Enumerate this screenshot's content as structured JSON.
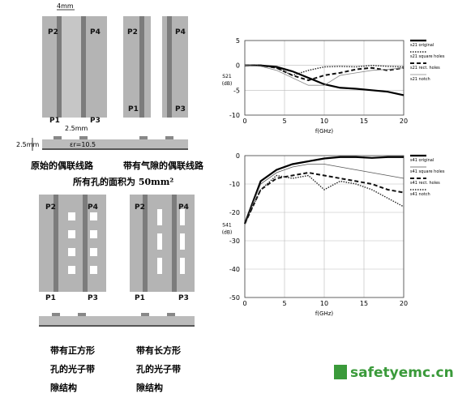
{
  "figure": {
    "width_label": "4mm",
    "gap_label": "2.5mm",
    "height_label": "2.5mm",
    "eps_label": "εr=10.5",
    "ports": [
      "P2",
      "P4",
      "P1",
      "P3"
    ],
    "caption_original": "原始的偶联线路",
    "caption_gap": "带有气隙的偶联线路",
    "caption_area": "所有孔的面积为 50mm²",
    "caption_square": [
      "带有正方形",
      "孔的光子带",
      "隙结构"
    ],
    "caption_rect": [
      "带有长方形",
      "孔的光子带",
      "隙结构"
    ],
    "watermark": "safetyemc.cn"
  },
  "chart_data": [
    {
      "type": "line",
      "ylabel": [
        "S21",
        "(dB)"
      ],
      "xlabel": "f(GHz)",
      "x": [
        0,
        2,
        4,
        6,
        8,
        10,
        12,
        14,
        16,
        18,
        20
      ],
      "xlim": [
        0,
        20
      ],
      "xticks": [
        0,
        5,
        10,
        15,
        20
      ],
      "ylim": [
        -10,
        5
      ],
      "yticks": [
        -10,
        -5,
        0,
        5
      ],
      "grid": true,
      "legend": "right",
      "series": [
        {
          "name": "s21 original",
          "color": "#000000",
          "dash": "solid",
          "values": [
            0,
            0,
            -0.3,
            -1.2,
            -2.5,
            -3.8,
            -4.5,
            -4.7,
            -5,
            -5.3,
            -6
          ]
        },
        {
          "name": "s21 square holes",
          "color": "#222222",
          "dash": "dotted",
          "values": [
            0,
            0,
            -0.5,
            -2,
            -1,
            -0.3,
            -0.2,
            -0.3,
            0,
            -0.2,
            -0.3
          ]
        },
        {
          "name": "s21 rect. holes",
          "color": "#111111",
          "dash": "dashed",
          "values": [
            0,
            0,
            -0.5,
            -2,
            -3,
            -2,
            -1.5,
            -0.8,
            -0.5,
            -1,
            -0.5
          ]
        },
        {
          "name": "s21 notch",
          "color": "#888888",
          "dash": "thin",
          "values": [
            0,
            -0.2,
            -1,
            -2.5,
            -4,
            -4,
            -2,
            -1.5,
            -1,
            -0.8,
            -0.5
          ]
        }
      ]
    },
    {
      "type": "line",
      "ylabel": [
        "S41",
        "(dB)"
      ],
      "xlabel": "f(GHz)",
      "x": [
        0,
        2,
        4,
        6,
        8,
        10,
        12,
        14,
        16,
        18,
        20
      ],
      "xlim": [
        0,
        20
      ],
      "xticks": [
        0,
        5,
        10,
        15,
        20
      ],
      "ylim": [
        -50,
        0
      ],
      "yticks": [
        -50,
        -40,
        -30,
        -20,
        -10,
        0
      ],
      "grid": true,
      "legend": "right",
      "series": [
        {
          "name": "s41 original",
          "color": "#000000",
          "dash": "solid",
          "values": [
            -24,
            -9,
            -5,
            -3,
            -2,
            -1,
            -0.5,
            -0.5,
            -0.8,
            -0.5,
            -0.5
          ]
        },
        {
          "name": "s41 square holes",
          "color": "#555555",
          "dash": "thin",
          "values": [
            -24,
            -10,
            -6,
            -4,
            -3,
            -3,
            -4,
            -5,
            -6,
            -7,
            -8
          ]
        },
        {
          "name": "s41 rect. holes",
          "color": "#111111",
          "dash": "dashed",
          "values": [
            -24,
            -12,
            -8,
            -7,
            -6,
            -7,
            -8,
            -9,
            -10,
            -12,
            -13
          ]
        },
        {
          "name": "s41 notch",
          "color": "#222222",
          "dash": "dotted",
          "values": [
            -24,
            -12,
            -7,
            -8,
            -7,
            -12,
            -9,
            -10,
            -12,
            -15,
            -18
          ]
        }
      ]
    }
  ]
}
